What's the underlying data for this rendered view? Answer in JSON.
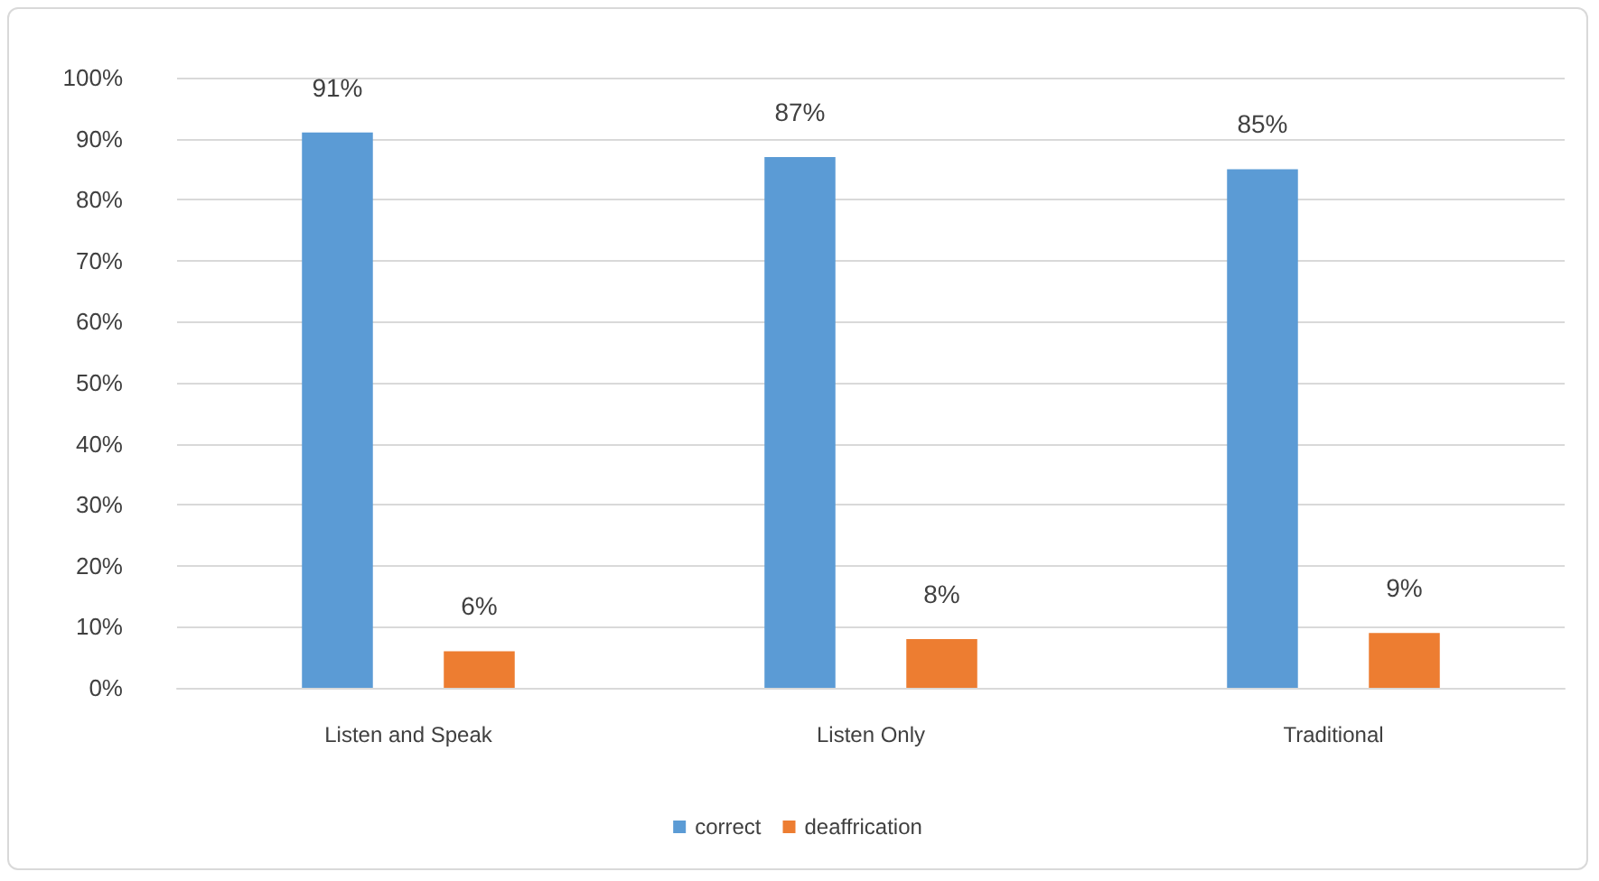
{
  "chart_data": {
    "type": "bar",
    "categories": [
      "Listen and Speak",
      "Listen Only",
      "Traditional"
    ],
    "series": [
      {
        "name": "correct",
        "color": "#5b9bd5",
        "values": [
          91,
          87,
          85
        ],
        "value_labels": [
          "91%",
          "87%",
          "85%"
        ]
      },
      {
        "name": "deaffrication",
        "color": "#ed7d31",
        "values": [
          6,
          8,
          9
        ],
        "value_labels": [
          "6%",
          "8%",
          "9%"
        ]
      }
    ],
    "ylim": [
      0,
      100
    ],
    "yticks": [
      {
        "value": 0,
        "label": "0%"
      },
      {
        "value": 10,
        "label": "10%"
      },
      {
        "value": 20,
        "label": "20%"
      },
      {
        "value": 30,
        "label": "30%"
      },
      {
        "value": 40,
        "label": "40%"
      },
      {
        "value": 50,
        "label": "50%"
      },
      {
        "value": 60,
        "label": "60%"
      },
      {
        "value": 70,
        "label": "70%"
      },
      {
        "value": 80,
        "label": "80%"
      },
      {
        "value": 90,
        "label": "90%"
      },
      {
        "value": 100,
        "label": "100%"
      }
    ],
    "grid": "y",
    "legend": "bottom"
  }
}
